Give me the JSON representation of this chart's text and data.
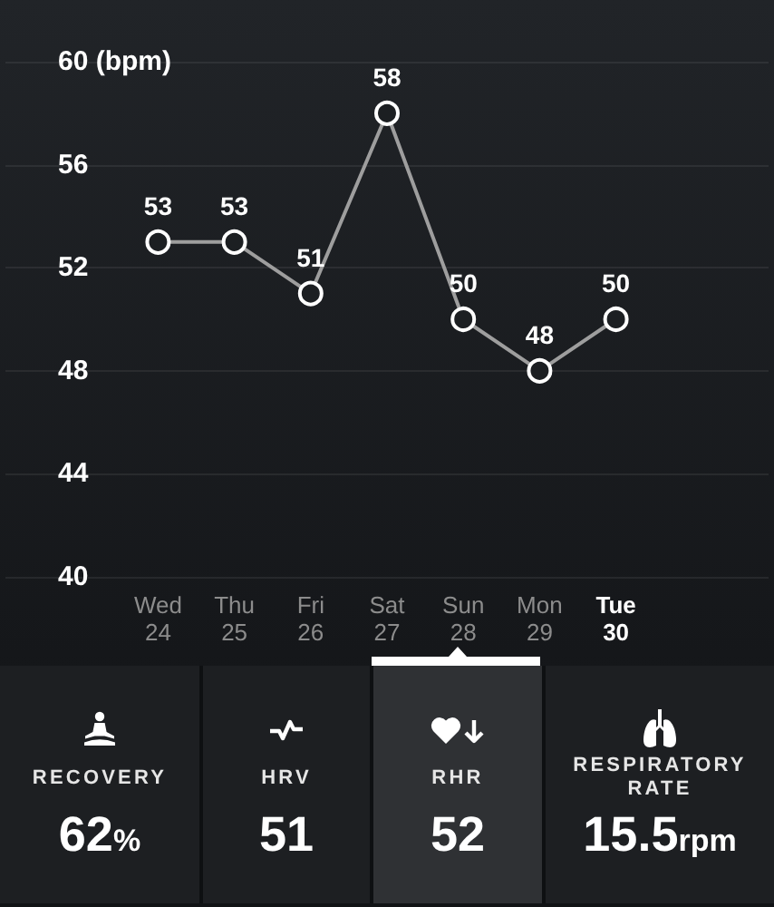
{
  "chart_data": [
    {
      "type": "line",
      "categories": [
        "Wed 24",
        "Thu 25",
        "Fri 26",
        "Sat 27",
        "Sun 28",
        "Mon 29",
        "Tue 30"
      ],
      "values": [
        53,
        53,
        51,
        58,
        50,
        48,
        50
      ],
      "color": "#9e9e9e",
      "ylim": [
        40,
        60
      ],
      "yticks": [
        40,
        44,
        48,
        52,
        56,
        {
          "value": 60,
          "label": "60 (bpm)"
        }
      ],
      "grid": "y",
      "marker": "circle",
      "data_labels": true
    },
    {
      "type": "other",
      "annotations": [
        "RECOVERY",
        "62%",
        "HRV",
        "51",
        "RHR",
        "52",
        "RESPIRATORY RATE",
        "15.5rpm"
      ]
    }
  ]
}
